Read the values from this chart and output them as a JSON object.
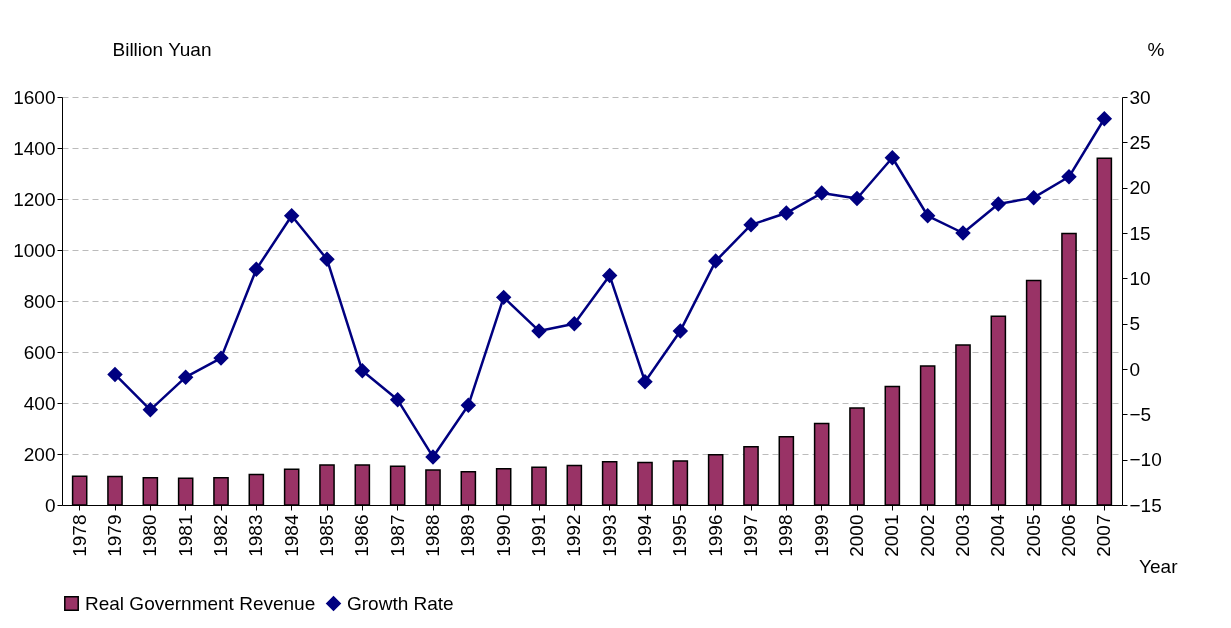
{
  "chart_data": {
    "type": "bar",
    "xlabel": "Year",
    "ylabel": "Billion Yuan",
    "y2label": "%",
    "categories": [
      "1978",
      "1979",
      "1980",
      "1981",
      "1982",
      "1983",
      "1984",
      "1985",
      "1986",
      "1987",
      "1988",
      "1989",
      "1990",
      "1991",
      "1992",
      "1993",
      "1994",
      "1995",
      "1996",
      "1997",
      "1998",
      "1999",
      "2000",
      "2001",
      "2002",
      "2003",
      "2004",
      "2005",
      "2006",
      "2007"
    ],
    "series": [
      {
        "name": "Real Government Revenue",
        "color": "#993366",
        "values": [
          113,
          112,
          107,
          105,
          107,
          120,
          140,
          157,
          157,
          152,
          137,
          130,
          142,
          148,
          155,
          170,
          167,
          173,
          197,
          228,
          268,
          320,
          380,
          465,
          545,
          627,
          740,
          880,
          1065,
          1360
        ]
      },
      {
        "name": "Growth Rate",
        "type": "line",
        "axis": "y2",
        "color": "#000080",
        "marker": "diamond",
        "values": [
          null,
          -0.6,
          -4.5,
          -0.9,
          1.2,
          11.0,
          16.9,
          12.1,
          -0.2,
          -3.4,
          -9.7,
          -4.0,
          7.9,
          4.2,
          5.0,
          10.3,
          -1.4,
          4.2,
          11.9,
          15.9,
          17.2,
          19.4,
          18.8,
          23.3,
          16.9,
          15.0,
          18.2,
          18.9,
          21.2,
          27.6
        ]
      }
    ],
    "ylim": [
      0,
      1600
    ],
    "yticks": [
      0,
      200,
      400,
      600,
      800,
      1000,
      1200,
      1400,
      1600
    ],
    "y2lim": [
      -15,
      30
    ],
    "y2ticks": [
      -15,
      -10,
      -5,
      0,
      5,
      10,
      15,
      20,
      25,
      30
    ],
    "grid": "y",
    "legend": "bottom"
  }
}
